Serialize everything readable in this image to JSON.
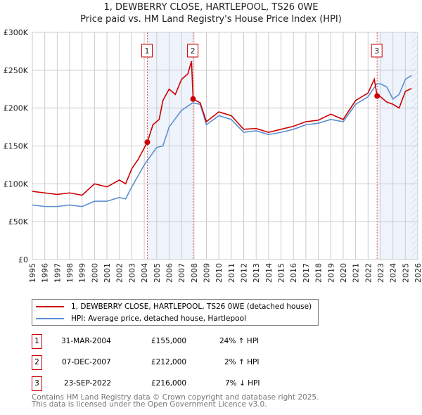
{
  "title": "1, DEWBERRY CLOSE, HARTLEPOOL, TS26 0WE",
  "subtitle": "Price paid vs. HM Land Registry's House Price Index (HPI)",
  "chart_data": {
    "type": "line",
    "xlim": [
      1995,
      2026
    ],
    "ylim": [
      0,
      300000
    ],
    "yticks": [
      0,
      50000,
      100000,
      150000,
      200000,
      250000,
      300000
    ],
    "ytick_labels": [
      "£0",
      "£50K",
      "£100K",
      "£150K",
      "£200K",
      "£250K",
      "£300K"
    ],
    "xticks": [
      "1995",
      "1996",
      "1997",
      "1998",
      "1999",
      "2000",
      "2001",
      "2002",
      "2003",
      "2004",
      "2005",
      "2006",
      "2007",
      "2008",
      "2009",
      "2010",
      "2011",
      "2012",
      "2013",
      "2014",
      "2015",
      "2016",
      "2017",
      "2018",
      "2019",
      "2020",
      "2021",
      "2022",
      "2023",
      "2024",
      "2025",
      "2026"
    ],
    "grid": true,
    "shaded_regions": [
      [
        2004.25,
        2007.93
      ],
      [
        2022.73,
        2026
      ]
    ],
    "hatched_from": 2025.5,
    "series": [
      {
        "name": "1, DEWBERRY CLOSE, HARTLEPOOL, TS26 0WE (detached house)",
        "color": "#cc0000",
        "x": [
          1995,
          1996,
          1997,
          1998,
          1999,
          2000,
          2001,
          2002,
          2002.5,
          2003,
          2003.5,
          2004.25,
          2004.7,
          2005.2,
          2005.5,
          2006,
          2006.5,
          2007,
          2007.5,
          2007.8,
          2007.93,
          2008.5,
          2009,
          2010,
          2011,
          2012,
          2013,
          2014,
          2015,
          2016,
          2017,
          2018,
          2019,
          2020,
          2021,
          2022,
          2022.5,
          2022.73,
          2023,
          2023.5,
          2024,
          2024.5,
          2025,
          2025.5
        ],
        "y": [
          90000,
          88000,
          86000,
          88000,
          85000,
          100000,
          96000,
          105000,
          100000,
          120000,
          132000,
          155000,
          178000,
          185000,
          210000,
          225000,
          218000,
          238000,
          245000,
          262000,
          212000,
          207000,
          182000,
          195000,
          190000,
          172000,
          173000,
          168000,
          172000,
          176000,
          182000,
          184000,
          192000,
          185000,
          210000,
          220000,
          238000,
          216000,
          215000,
          208000,
          205000,
          200000,
          222000,
          226000
        ]
      },
      {
        "name": "HPI: Average price, detached house, Hartlepool",
        "color": "#5b8fd0",
        "x": [
          1995,
          1996,
          1997,
          1998,
          1999,
          2000,
          2001,
          2002,
          2002.5,
          2003,
          2004,
          2005,
          2005.5,
          2006,
          2007,
          2007.9,
          2008.5,
          2009,
          2010,
          2011,
          2012,
          2013,
          2014,
          2015,
          2016,
          2017,
          2018,
          2019,
          2020,
          2021,
          2022,
          2022.7,
          2023,
          2023.5,
          2024,
          2024.5,
          2025,
          2025.5
        ],
        "y": [
          72000,
          70000,
          70000,
          72000,
          70000,
          77000,
          77000,
          82000,
          80000,
          96000,
          125000,
          148000,
          150000,
          175000,
          197000,
          207000,
          205000,
          178000,
          190000,
          185000,
          168000,
          170000,
          165000,
          168000,
          172000,
          178000,
          180000,
          185000,
          182000,
          205000,
          215000,
          232000,
          232000,
          228000,
          212000,
          218000,
          238000,
          243000
        ]
      }
    ],
    "markers": [
      {
        "label": "1",
        "x": 2004.25,
        "y": 155000
      },
      {
        "label": "2",
        "x": 2007.93,
        "y": 212000
      },
      {
        "label": "3",
        "x": 2022.73,
        "y": 216000
      }
    ]
  },
  "legend": [
    "1, DEWBERRY CLOSE, HARTLEPOOL, TS26 0WE (detached house)",
    "HPI: Average price, detached house, Hartlepool"
  ],
  "transactions": [
    {
      "num": "1",
      "date": "31-MAR-2004",
      "price": "£155,000",
      "hpi": "24% ↑ HPI"
    },
    {
      "num": "2",
      "date": "07-DEC-2007",
      "price": "£212,000",
      "hpi": "2% ↑ HPI"
    },
    {
      "num": "3",
      "date": "23-SEP-2022",
      "price": "£216,000",
      "hpi": "7% ↓ HPI"
    }
  ],
  "footer": [
    "Contains HM Land Registry data © Crown copyright and database right 2025.",
    "This data is licensed under the Open Government Licence v3.0."
  ]
}
